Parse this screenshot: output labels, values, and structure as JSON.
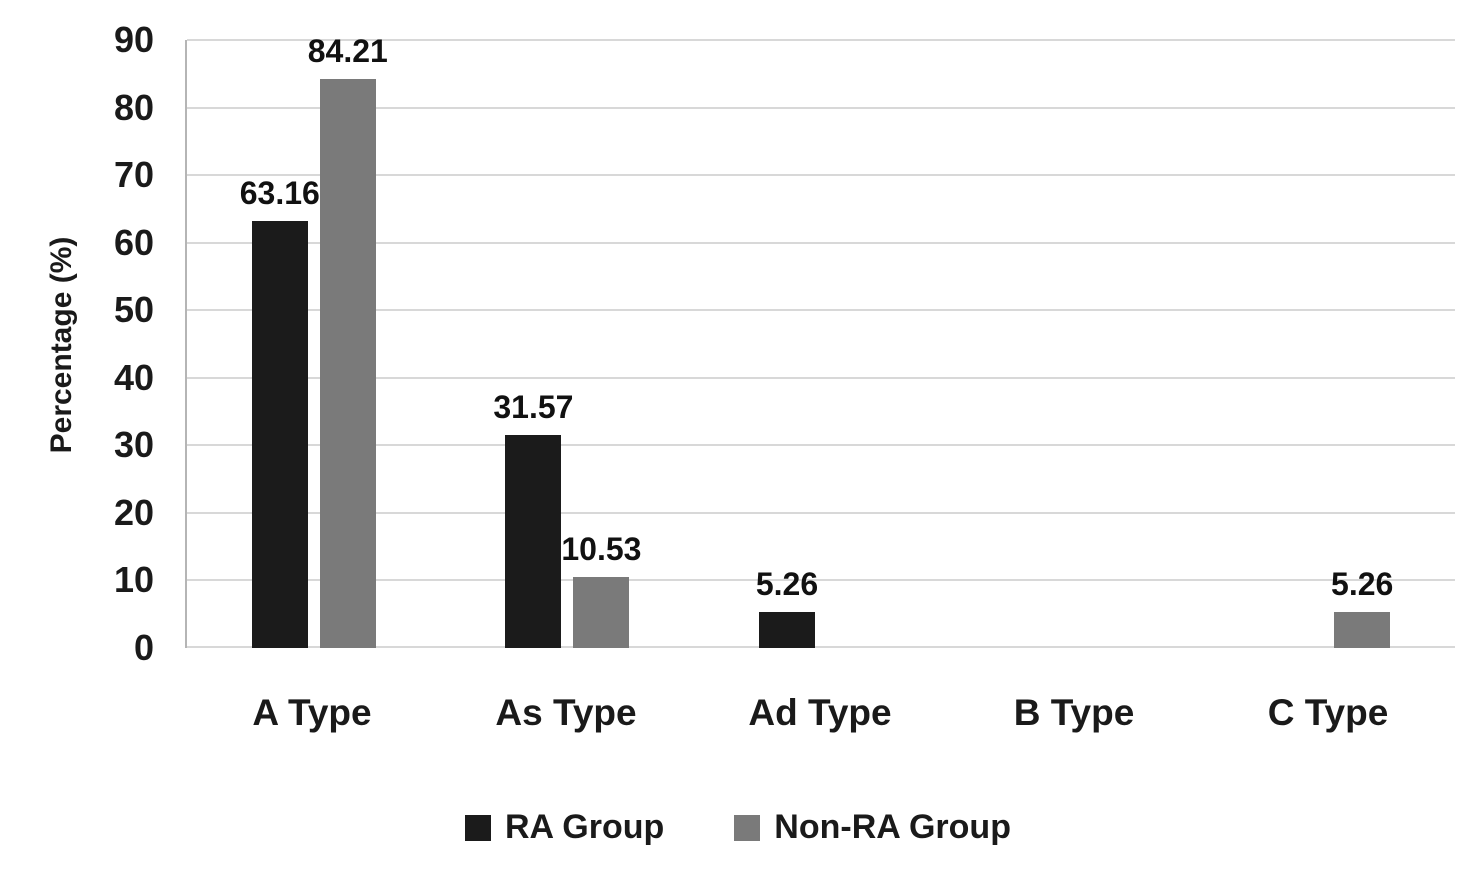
{
  "chart_data": {
    "type": "bar",
    "title": "",
    "xlabel": "",
    "ylabel": "Percentage (%)",
    "ylim": [
      0,
      90
    ],
    "yticks": [
      0,
      10,
      20,
      30,
      40,
      50,
      60,
      70,
      80,
      90
    ],
    "grid": "horizontal",
    "legend_position": "bottom",
    "categories": [
      "A Type",
      "As Type",
      "Ad Type",
      "B Type",
      "C Type"
    ],
    "series": [
      {
        "name": "RA Group",
        "color": "#1b1b1b",
        "values": [
          63.16,
          31.57,
          5.26,
          0,
          0
        ],
        "labels": [
          "63.16",
          "31.57",
          "5.26",
          "",
          ""
        ]
      },
      {
        "name": "Non-RA Group",
        "color": "#7a7a7a",
        "values": [
          84.21,
          10.53,
          0,
          0,
          5.26
        ],
        "labels": [
          "84.21",
          "10.53",
          "",
          "",
          "5.26"
        ]
      }
    ]
  }
}
